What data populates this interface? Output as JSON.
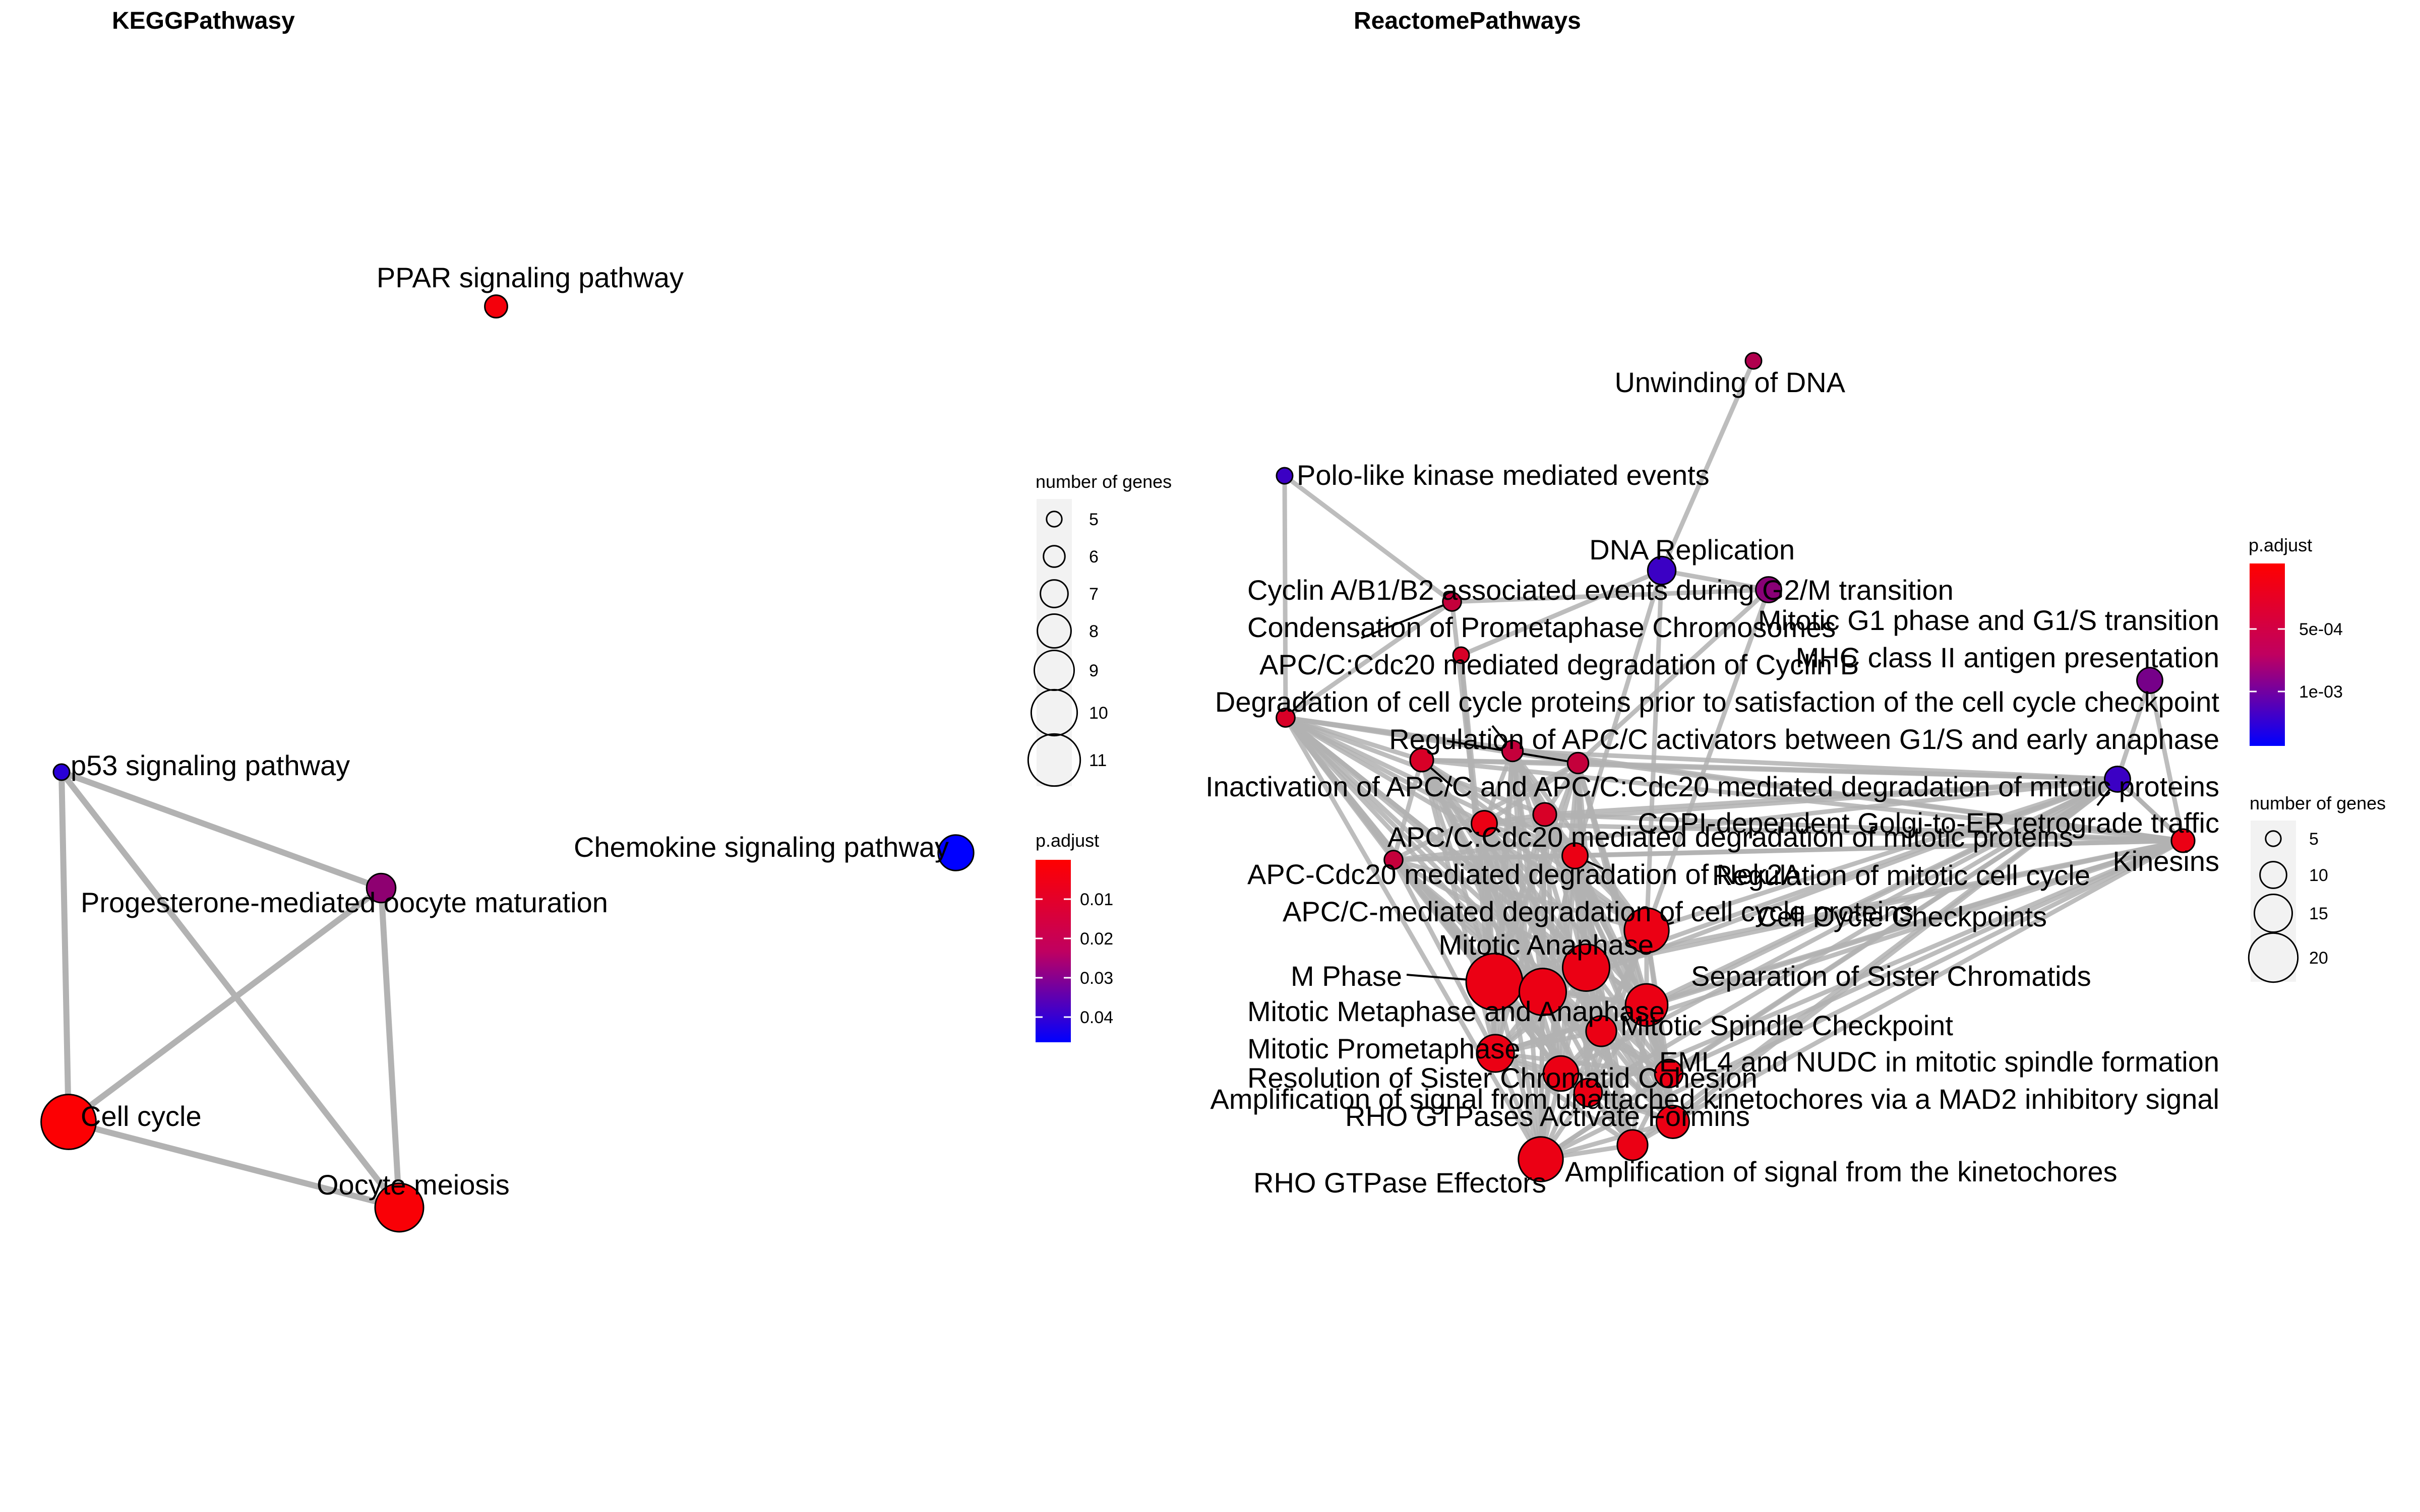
{
  "chart_data": [
    {
      "type": "network",
      "title": "KEGGPathwasy",
      "nodes": [
        {
          "name": "PPAR signaling pathway",
          "genes": 6,
          "p_adjust": 0.002
        },
        {
          "name": "p53 signaling pathway",
          "genes": 5,
          "p_adjust": 0.038
        },
        {
          "name": "Progesterone-mediated oocyte maturation",
          "genes": 7,
          "p_adjust": 0.02
        },
        {
          "name": "Chemokine signaling pathway",
          "genes": 8,
          "p_adjust": 0.045
        },
        {
          "name": "Cell cycle",
          "genes": 11,
          "p_adjust": 0.0005
        },
        {
          "name": "Oocyte meiosis",
          "genes": 10,
          "p_adjust": 0.001
        }
      ],
      "edges": [
        [
          "p53 signaling pathway",
          "Progesterone-mediated oocyte maturation"
        ],
        [
          "p53 signaling pathway",
          "Cell cycle"
        ],
        [
          "p53 signaling pathway",
          "Oocyte meiosis"
        ],
        [
          "Progesterone-mediated oocyte maturation",
          "Cell cycle"
        ],
        [
          "Progesterone-mediated oocyte maturation",
          "Oocyte meiosis"
        ],
        [
          "Cell cycle",
          "Oocyte meiosis"
        ]
      ],
      "size_legend": {
        "title": "number of genes",
        "values": [
          5,
          6,
          7,
          8,
          9,
          10,
          11
        ]
      },
      "color_legend": {
        "title": "p.adjust",
        "ticks": [
          "0.01",
          "0.02",
          "0.03",
          "0.04"
        ],
        "low_color": "#ff0000",
        "high_color": "#0000ff"
      }
    },
    {
      "type": "network",
      "title": "ReactomePathways",
      "nodes": [
        {
          "name": "Unwinding of DNA",
          "genes": 5,
          "p_adjust": 0.0004
        },
        {
          "name": "Polo-like kinase mediated events",
          "genes": 5,
          "p_adjust": 0.001
        },
        {
          "name": "DNA Replication",
          "genes": 10,
          "p_adjust": 0.001
        },
        {
          "name": "Cyclin A/B1/B2 associated events during G2/M transition",
          "genes": 6,
          "p_adjust": 0.0003
        },
        {
          "name": "Mitotic G1 phase and G1/S transition",
          "genes": 9,
          "p_adjust": 0.0006
        },
        {
          "name": "Condensation of Prometaphase Chromosomes",
          "genes": 5,
          "p_adjust": 0.0002
        },
        {
          "name": "MHC class II antigen presentation",
          "genes": 9,
          "p_adjust": 0.0007
        },
        {
          "name": "APC/C:Cdc20 mediated degradation of Cyclin B",
          "genes": 6,
          "p_adjust": 0.0002
        },
        {
          "name": "Degradation of cell cycle proteins prior to satisfaction of the cell cycle checkpoint",
          "genes": 7,
          "p_adjust": 0.0003
        },
        {
          "name": "Regulation of APC/C activators between G1/S and early anaphase",
          "genes": 7,
          "p_adjust": 0.0003
        },
        {
          "name": "Inactivation of APC/C and APC/C:Cdc20 mediated degradation of mitotic proteins",
          "genes": 8,
          "p_adjust": 0.0002
        },
        {
          "name": "COPI-dependent Golgi-to-ER retrograde traffic",
          "genes": 9,
          "p_adjust": 0.001
        },
        {
          "name": "APC/C:Cdc20 mediated degradation of mitotic proteins",
          "genes": 8,
          "p_adjust": 0.0002
        },
        {
          "name": "Kinesins",
          "genes": 8,
          "p_adjust": 0.0001
        },
        {
          "name": "APC-Cdc20 mediated degradation of Nek2A",
          "genes": 6,
          "p_adjust": 0.0003
        },
        {
          "name": "Regulation of mitotic cell cycle",
          "genes": 9,
          "p_adjust": 0.0001
        },
        {
          "name": "APC/C-mediated degradation of cell cycle proteins",
          "genes": 9,
          "p_adjust": 0.0001
        },
        {
          "name": "Cell Cycle Checkpoints",
          "genes": 17,
          "p_adjust": 0.0001
        },
        {
          "name": "Mitotic Anaphase",
          "genes": 18,
          "p_adjust": 0.0001
        },
        {
          "name": "M Phase",
          "genes": 22,
          "p_adjust": 0.0001
        },
        {
          "name": "Separation of Sister Chromatids",
          "genes": 16,
          "p_adjust": 0.0001
        },
        {
          "name": "Mitotic Metaphase and Anaphase",
          "genes": 18,
          "p_adjust": 0.0001
        },
        {
          "name": "Mitotic Spindle Checkpoint",
          "genes": 11,
          "p_adjust": 0.0001
        },
        {
          "name": "Mitotic Prometaphase",
          "genes": 14,
          "p_adjust": 0.0001
        },
        {
          "name": "EML4 and NUDC in mitotic spindle formation",
          "genes": 10,
          "p_adjust": 0.0001
        },
        {
          "name": "Resolution of Sister Chromatid Cohesion",
          "genes": 13,
          "p_adjust": 0.0001
        },
        {
          "name": "Amplification of signal from unattached kinetochores via a MAD2 inhibitory signal",
          "genes": 10,
          "p_adjust": 0.0001
        },
        {
          "name": "RHO GTPases Activate Formins",
          "genes": 12,
          "p_adjust": 0.0001
        },
        {
          "name": "RHO GTPase Effectors",
          "genes": 17,
          "p_adjust": 0.0001
        },
        {
          "name": "Amplification of signal from the kinetochores",
          "genes": 11,
          "p_adjust": 0.0001
        }
      ],
      "size_legend": {
        "title": "number of genes",
        "values": [
          5,
          10,
          15,
          20
        ]
      },
      "color_legend": {
        "title": "p.adjust",
        "ticks": [
          "5e-04",
          "1e-03"
        ],
        "low_color": "#ff0000",
        "high_color": "#0000ff"
      }
    }
  ]
}
